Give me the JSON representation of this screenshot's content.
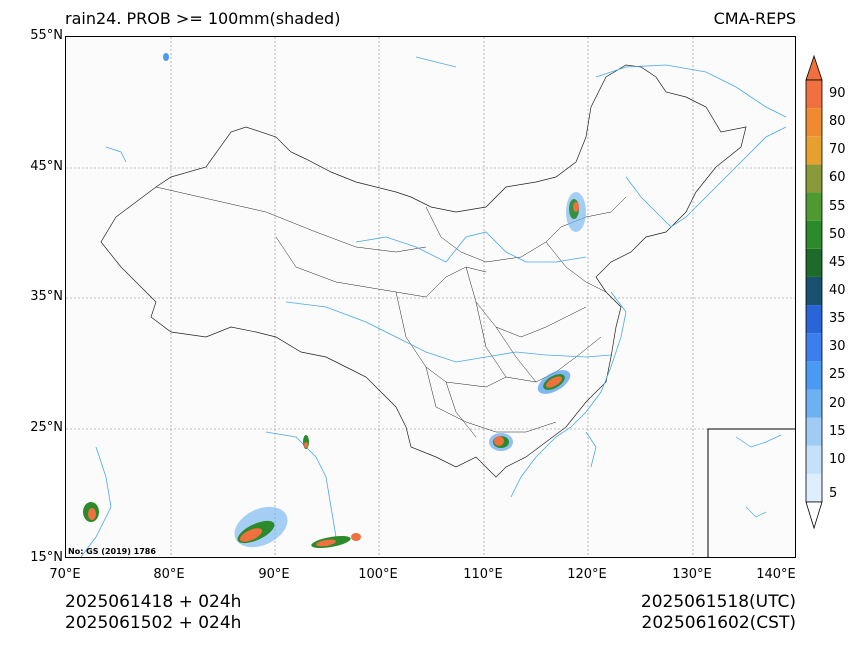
{
  "title_left": "rain24. PROB >= 100mm(shaded)",
  "title_right": "CMA-REPS",
  "lat_ticks": [
    "55°N",
    "45°N",
    "35°N",
    "25°N",
    "15°N"
  ],
  "lon_ticks": [
    "70°E",
    "80°E",
    "90°E",
    "100°E",
    "110°E",
    "120°E",
    "130°E",
    "140°E"
  ],
  "init_time_utc": "2025061418  +  024h",
  "init_time_cst": "2025061502  +  024h",
  "valid_time_utc": "2025061518(UTC)",
  "valid_time_cst": "2025061602(CST)",
  "map_note": "No: GS (2019) 1786",
  "colorbar": {
    "labels": [
      "5",
      "10",
      "15",
      "20",
      "25",
      "30",
      "35",
      "40",
      "45",
      "50",
      "55",
      "60",
      "70",
      "80",
      "90"
    ],
    "colors": [
      "#ddeeff",
      "#c4e0fb",
      "#9fcbf5",
      "#6cb1f2",
      "#4a9af2",
      "#3a7fec",
      "#2a65d8",
      "#1a5070",
      "#1d6a2a",
      "#2b8a2a",
      "#4e9a30",
      "#8a9a3a",
      "#e6a030",
      "#f08a30",
      "#f07040"
    ]
  },
  "map_extent": {
    "lon": [
      70,
      140
    ],
    "lat": [
      15,
      55
    ]
  },
  "colors": {
    "border": "#000000",
    "river": "#4aa8e8",
    "grid": "#888888"
  }
}
